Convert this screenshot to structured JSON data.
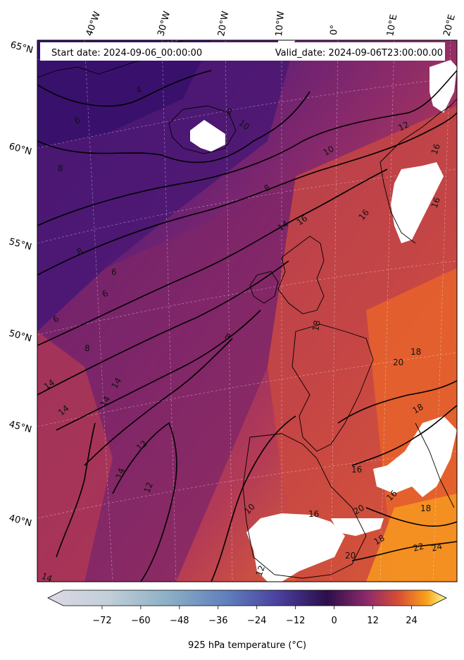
{
  "header": {
    "start_date": "Start date: 2024-09-06_00:00:00",
    "valid_date": "Valid_date: 2024-09-06T23:00:00.00"
  },
  "lon_labels": [
    "40°W",
    "30°W",
    "20°W",
    "10°W",
    "0°",
    "10°E",
    "20°E"
  ],
  "lat_labels": [
    "65°N",
    "60°N",
    "55°N",
    "50°N",
    "45°N",
    "40°N"
  ],
  "colorbar": {
    "label": "925 hPa temperature ($^\\circ$C)",
    "label_display": "925 hPa temperature (°C)",
    "ticks": [
      "−72",
      "−60",
      "−48",
      "−36",
      "−24",
      "−12",
      "0",
      "12",
      "24"
    ],
    "tick_values": [
      -72,
      -60,
      -48,
      -36,
      -24,
      -12,
      0,
      12,
      24
    ],
    "range": [
      -84,
      30
    ],
    "colormap": "inferno",
    "extend": "both"
  },
  "contour_labels": [
    "6",
    "4",
    "8",
    "8",
    "10",
    "12",
    "10",
    "8",
    "14",
    "16",
    "16",
    "16",
    "16",
    "8",
    "6",
    "6",
    "6",
    "8",
    "8",
    "18",
    "18",
    "20",
    "14",
    "14",
    "14",
    "14",
    "12",
    "12",
    "14",
    "10",
    "12",
    "16",
    "16",
    "18",
    "20",
    "20",
    "22",
    "24",
    "18",
    "18",
    "16",
    "14"
  ],
  "colors": {
    "cold": "#3b1572",
    "mid": "#8a2b6c",
    "warm": "#d4523a",
    "hot": "#f7a21e",
    "contour": "#000000",
    "mask": "#ffffff"
  }
}
